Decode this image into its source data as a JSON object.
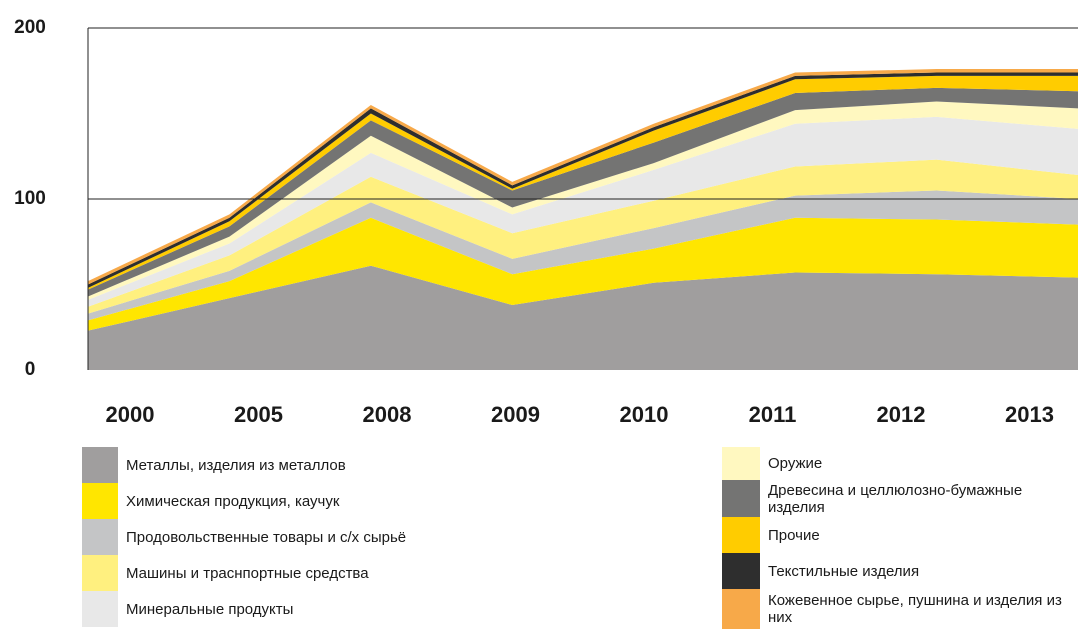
{
  "chart_data": {
    "type": "stacked_area",
    "categories": [
      "2000",
      "2005",
      "2008",
      "2009",
      "2010",
      "2011",
      "2012",
      "2013"
    ],
    "ylim": [
      0,
      200
    ],
    "yticks": [
      0,
      100,
      200
    ],
    "grid": true,
    "series": [
      {
        "name": "Металлы, изделия из металлов",
        "color": "#a09e9e",
        "values": [
          23,
          42,
          61,
          38,
          51,
          57,
          56,
          54
        ]
      },
      {
        "name": "Химическая продукция, каучук",
        "color": "#ffe600",
        "values": [
          6,
          10,
          28,
          18,
          20,
          32,
          32,
          31
        ]
      },
      {
        "name": "Продовольственные товары и с/х сырьё",
        "color": "#c4c5c6",
        "values": [
          4,
          6,
          9,
          9,
          12,
          13,
          17,
          15
        ]
      },
      {
        "name": "Машины и траснпортные средства",
        "color": "#fff07f",
        "values": [
          4,
          9,
          15,
          15,
          16,
          17,
          18,
          14
        ]
      },
      {
        "name": "Минеральные продукты",
        "color": "#e8e8e8",
        "values": [
          4,
          7,
          14,
          11,
          18,
          25,
          25,
          27
        ]
      },
      {
        "name": "Оружие",
        "color": "#fff8c0",
        "values": [
          2,
          4,
          10,
          4,
          4,
          8,
          9,
          12
        ]
      },
      {
        "name": "Древесина и целлюлозно-бумажные изделия",
        "color": "#747473",
        "values": [
          4,
          6,
          9,
          10,
          12,
          10,
          8,
          10
        ]
      },
      {
        "name": "Прочие",
        "color": "#ffcc00",
        "values": [
          1,
          3,
          4,
          1,
          7,
          8,
          7,
          9
        ]
      },
      {
        "name": "Текстильные изделия",
        "color": "#2e2e2e",
        "values": [
          2,
          2,
          3,
          2,
          2,
          2,
          2,
          2
        ]
      },
      {
        "name": "Кожевенное сырье, пушнина и изделия из них",
        "color": "#f7a949",
        "values": [
          2,
          2,
          2,
          2,
          2,
          2,
          2,
          2
        ]
      }
    ]
  }
}
